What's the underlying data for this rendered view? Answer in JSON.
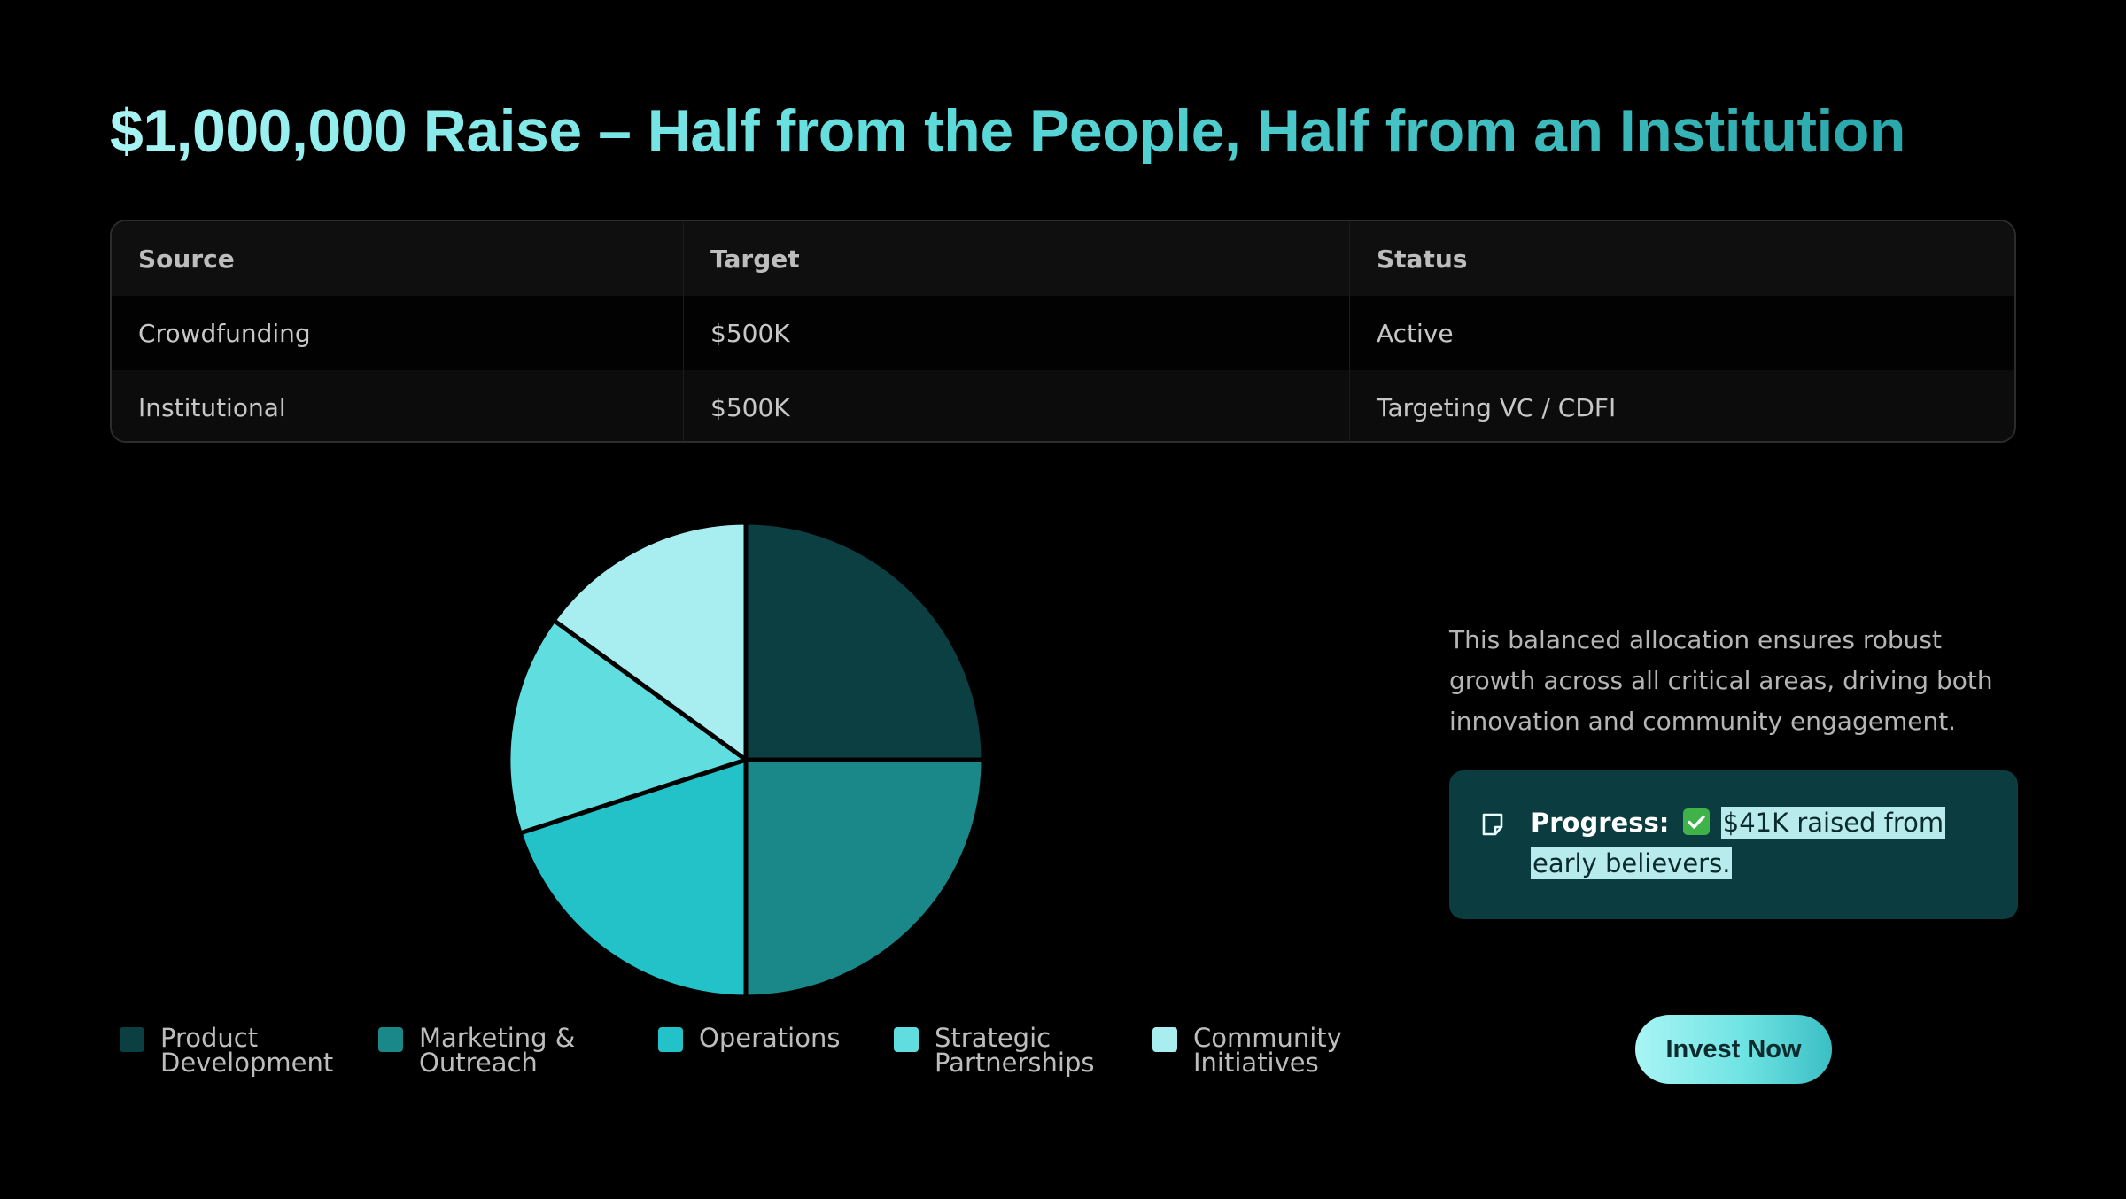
{
  "title": "$1,000,000 Raise – Half from the People, Half from an Institution",
  "table": {
    "headers": [
      "Source",
      "Target",
      "Status"
    ],
    "rows": [
      [
        "Crowdfunding",
        "$500K",
        "Active"
      ],
      [
        "Institutional",
        "$500K",
        "Targeting VC / CDFI"
      ]
    ]
  },
  "chart_data": {
    "type": "pie",
    "categories": [
      "Product Development",
      "Marketing & Outreach",
      "Operations",
      "Strategic Partnerships",
      "Community Initiatives"
    ],
    "values": [
      25,
      25,
      20,
      15,
      15
    ],
    "colors": [
      "#0b3f42",
      "#1a8789",
      "#22c2c8",
      "#5fdddf",
      "#a8eef0"
    ],
    "legend_labels": [
      "Product\nDevelopment",
      "Marketing &\nOutreach",
      "Operations",
      "Strategic\nPartnerships",
      "Community\nInitiatives"
    ],
    "legend_position": "bottom"
  },
  "description": "This balanced allocation ensures robust growth across all critical areas, driving both innovation and community engagement.",
  "progress": {
    "icon": "note-icon",
    "label": "Progress:",
    "status_icon": "check-icon",
    "text": "$41K raised from early believers."
  },
  "cta": {
    "label": "Invest Now"
  }
}
